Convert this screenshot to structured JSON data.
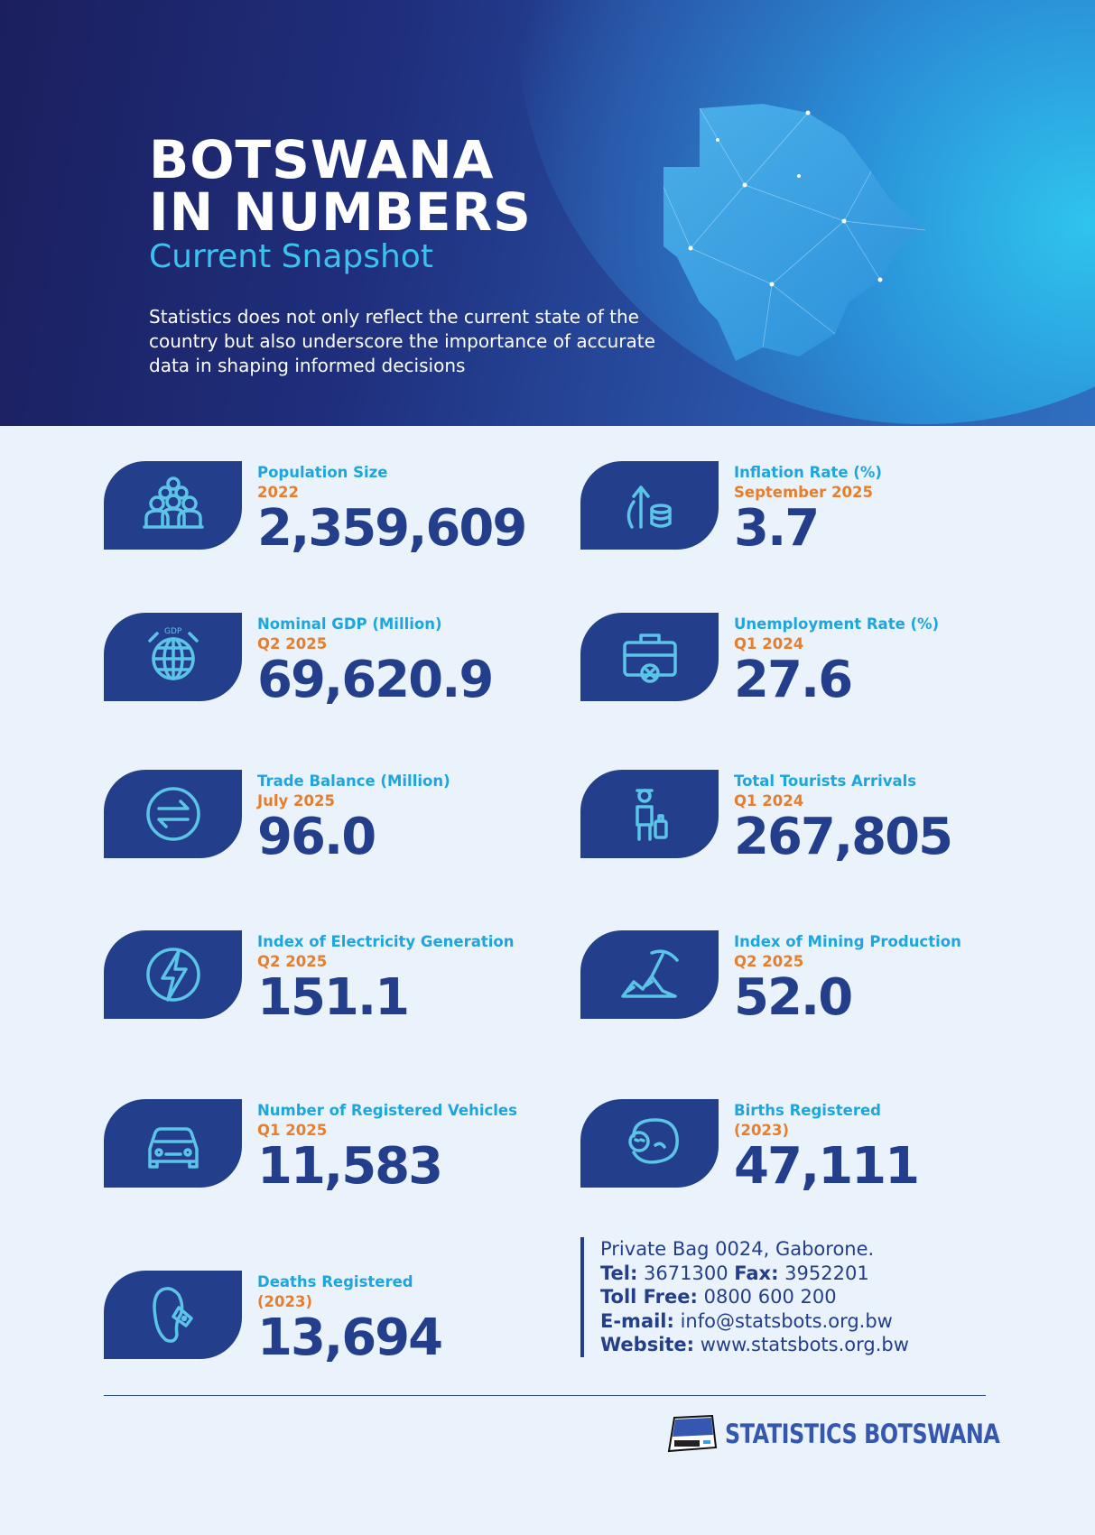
{
  "header": {
    "title_line1": "BOTSWANA",
    "title_line2": "IN NUMBERS",
    "subtitle": "Current Snapshot",
    "intro": "Statistics does not only reflect the current state of the country but also underscore the importance of accurate data in shaping informed decisions"
  },
  "stats": [
    {
      "label": "Population Size",
      "period": "2022",
      "value": "2,359,609",
      "icon": "people-group-icon"
    },
    {
      "label": "Inflation Rate  (%)",
      "period": "September 2025",
      "value": "3.7",
      "icon": "rising-coins-icon"
    },
    {
      "label": "Nominal GDP (Million)",
      "period": "Q2 2025",
      "value": "69,620.9",
      "icon": "gdp-globe-icon"
    },
    {
      "label": "Unemployment Rate (%)",
      "period": "Q1 2024",
      "value": "27.6",
      "icon": "briefcase-x-icon"
    },
    {
      "label": "Trade Balance (Million)",
      "period": "July 2025",
      "value": "96.0",
      "icon": "exchange-arrows-icon"
    },
    {
      "label": "Total Tourists Arrivals",
      "period": "Q1 2024",
      "value": "267,805",
      "icon": "tourist-luggage-icon"
    },
    {
      "label": "Index of Electricity Generation",
      "period": "Q2 2025",
      "value": "151.1",
      "icon": "lightning-icon"
    },
    {
      "label": "Index of Mining Production",
      "period": "Q2 2025",
      "value": "52.0",
      "icon": "pickaxe-icon"
    },
    {
      "label": "Number of Registered Vehicles",
      "period": "Q1 2025",
      "value": "11,583",
      "icon": "car-icon"
    },
    {
      "label": "Births Registered",
      "period": "(2023)",
      "value": "47,111",
      "icon": "baby-icon"
    },
    {
      "label": "Deaths Registered",
      "period": "(2023)",
      "value": "13,694",
      "icon": "toe-tag-icon"
    }
  ],
  "contact": {
    "address": "Private Bag 0024, Gaborone.",
    "tel_label": "Tel:",
    "tel": " 3671300 ",
    "fax_label": "Fax:",
    "fax": " 3952201",
    "tollfree_label": "Toll Free:",
    "tollfree": " 0800 600 200",
    "email_label": "E-mail:",
    "email": " info@statsbots.org.bw",
    "website_label": "Website:",
    "website": " www.statsbots.org.bw"
  },
  "footer": {
    "logo_text": "STATISTICS BOTSWANA"
  },
  "colors": {
    "navy": "#233e8b",
    "cyan": "#1fa5de",
    "orange": "#e67e2e",
    "background": "#eaf3fb"
  }
}
